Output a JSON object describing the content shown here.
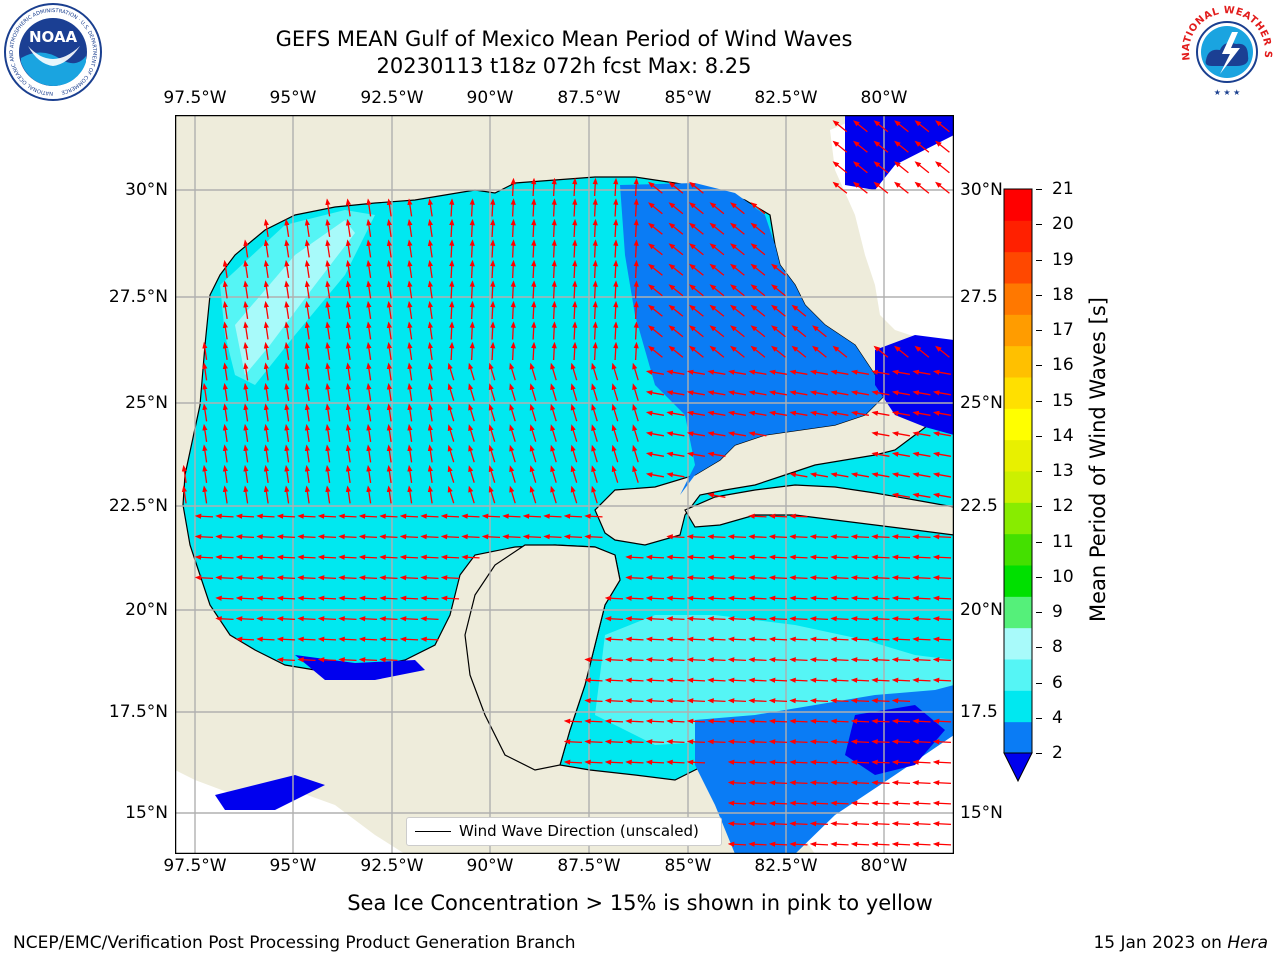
{
  "header": {
    "title_line1": "GEFS MEAN Gulf of Mexico Mean Period of Wind Waves",
    "title_line2": "20230113 t18z 072h fcst   Max: 8.25"
  },
  "logos": {
    "noaa_text": "NOAA",
    "noaa_ring_text": "NATIONAL OCEANIC AND ATMOSPHERIC ADMINISTRATION · U.S. DEPARTMENT OF COMMERCE",
    "nws_ring_text": "NATIONAL WEATHER SERVICE"
  },
  "map": {
    "lon_ticks": [
      "97.5°W",
      "95°W",
      "92.5°W",
      "90°W",
      "87.5°W",
      "85°W",
      "82.5°W",
      "80°W"
    ],
    "lat_ticks_left": [
      "30°N",
      "27.5°N",
      "25°N",
      "22.5°N",
      "20°N",
      "17.5°N",
      "15°N"
    ],
    "lat_ticks_right": [
      "30°N",
      "27.5",
      "25°N",
      "22.5",
      "20°N",
      "17.5",
      "15°N"
    ],
    "legend_label": "Wind Wave Direction (unscaled)",
    "colors": {
      "land": "#eeecdb",
      "ocean_outside": "#ffffff",
      "band_0_2": "#0000ee",
      "band_2_4": "#0a7cf5",
      "band_4_6": "#00e8f0",
      "band_6_8": "#55f5f5",
      "band_8_9": "#a8fafa",
      "arrow": "#ff0000",
      "grid": "#b0b0b0"
    }
  },
  "colorbar": {
    "title": "Mean Period of Wind Waves [s]",
    "labels": [
      "21",
      "20",
      "19",
      "18",
      "17",
      "16",
      "15",
      "14",
      "13",
      "12",
      "11",
      "10",
      "9",
      "8",
      "6",
      "4",
      "2"
    ],
    "colors": [
      "#0a7cf5",
      "#00e8f0",
      "#55f5f5",
      "#a8fafa",
      "#55f07a",
      "#00e000",
      "#44e000",
      "#88ec00",
      "#ccf000",
      "#e8f000",
      "#ffff00",
      "#ffe000",
      "#ffc000",
      "#ff9c00",
      "#ff7800",
      "#ff4800",
      "#ff2000",
      "#ff0000"
    ],
    "extend_color": "#0000ee"
  },
  "footer": {
    "sea_ice_note": "Sea Ice Concentration > 15% is shown in pink to yellow",
    "credit": "NCEP/EMC/Verification Post Processing Product Generation Branch",
    "date_prefix": "15 Jan 2023 on ",
    "host": "Hera"
  }
}
